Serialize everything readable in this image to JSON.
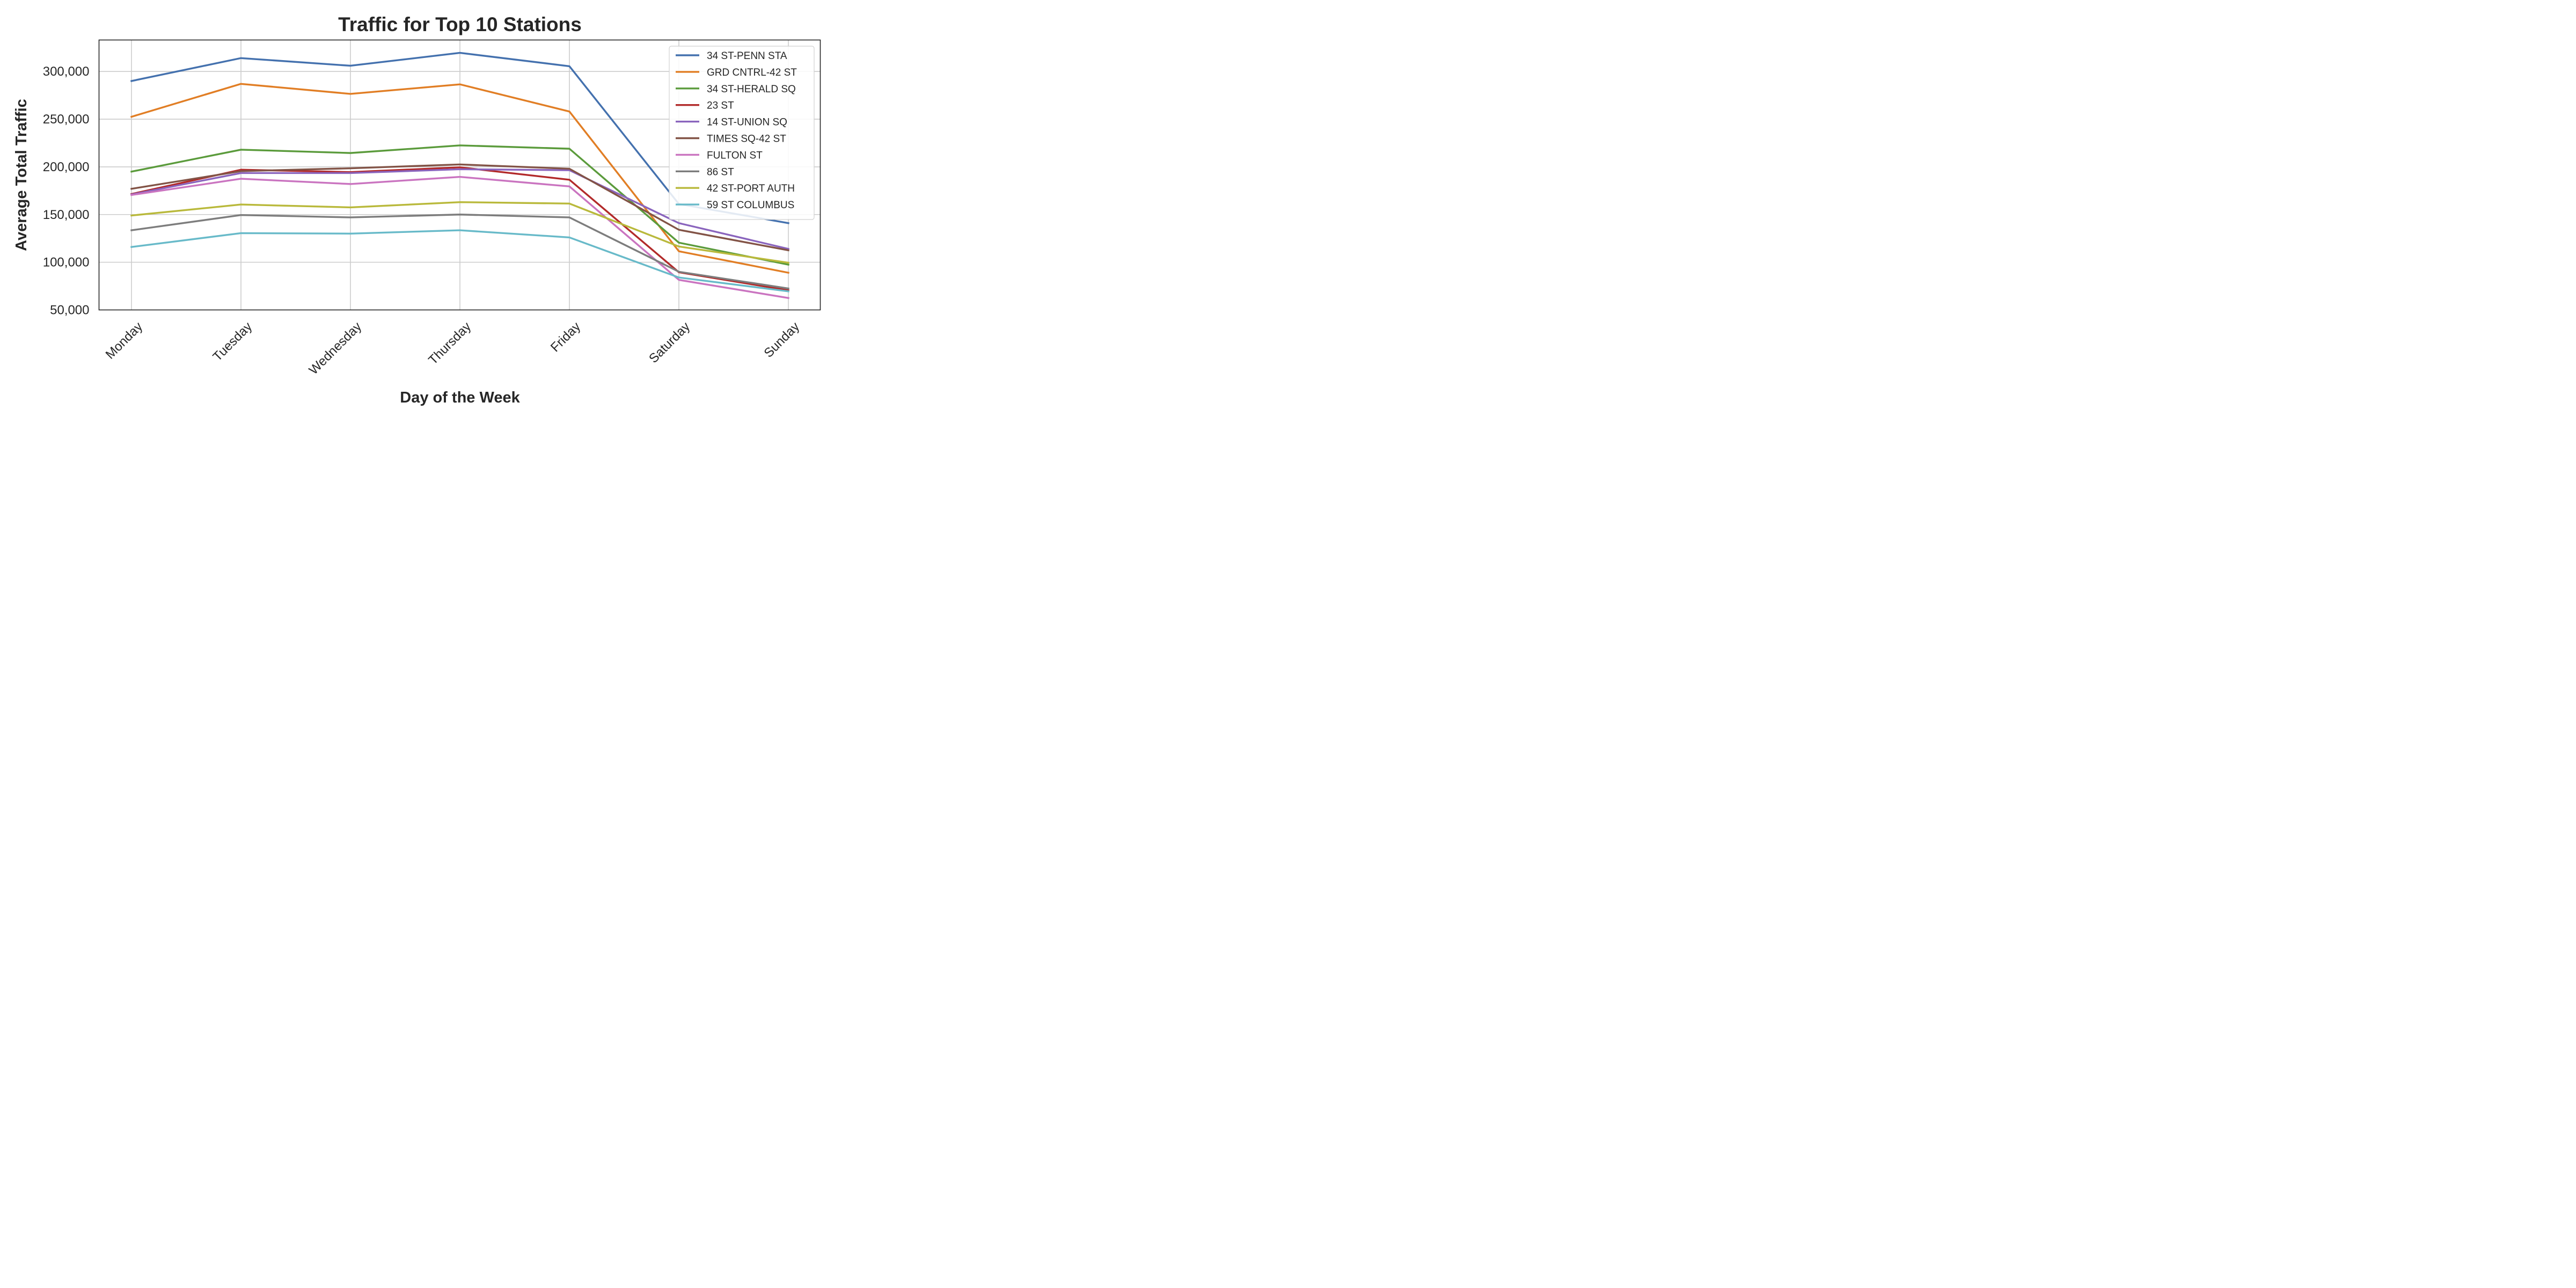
{
  "chart_data": {
    "type": "line",
    "title": "Traffic for Top 10 Stations",
    "xlabel": "Day of the Week",
    "ylabel": "Average Total Traffic",
    "categories": [
      "Monday",
      "Tuesday",
      "Wednesday",
      "Thursday",
      "Friday",
      "Saturday",
      "Sunday"
    ],
    "ylim": [
      50000,
      333000
    ],
    "yticks": [
      50000,
      100000,
      150000,
      200000,
      250000,
      300000
    ],
    "ytick_labels": [
      "50,000",
      "100,000",
      "150,000",
      "200,000",
      "250,000",
      "300,000"
    ],
    "grid": true,
    "legend_position": "top-right",
    "series": [
      {
        "name": "34 ST-PENN STA",
        "color": "#4471ae",
        "values": [
          290000,
          314000,
          306000,
          319500,
          305500,
          161000,
          141000
        ]
      },
      {
        "name": "GRD CNTRL-42 ST",
        "color": "#e17e25",
        "values": [
          252500,
          287000,
          276500,
          286500,
          258000,
          111500,
          89000
        ]
      },
      {
        "name": "34 ST-HERALD SQ",
        "color": "#5b9b3c",
        "values": [
          195000,
          218000,
          214500,
          222500,
          219000,
          120500,
          97500
        ]
      },
      {
        "name": "23 ST",
        "color": "#b22a2a",
        "values": [
          171500,
          197000,
          194500,
          199500,
          186500,
          89500,
          70500
        ]
      },
      {
        "name": "14 ST-UNION SQ",
        "color": "#8a64bd",
        "values": [
          171000,
          193500,
          193500,
          197500,
          196500,
          141000,
          114000
        ]
      },
      {
        "name": "TIMES SQ-42 ST",
        "color": "#825346",
        "values": [
          177000,
          195500,
          198500,
          202500,
          198000,
          134000,
          112500
        ]
      },
      {
        "name": "FULTON ST",
        "color": "#ca74c0",
        "values": [
          170500,
          187500,
          182000,
          189500,
          179500,
          81500,
          62500
        ]
      },
      {
        "name": "86 ST",
        "color": "#7d7d7d",
        "values": [
          133500,
          149500,
          147000,
          150000,
          147000,
          90000,
          72500
        ]
      },
      {
        "name": "42 ST-PORT AUTH",
        "color": "#b9b93b",
        "values": [
          149000,
          160500,
          157500,
          163000,
          161500,
          116500,
          99500
        ]
      },
      {
        "name": "59 ST COLUMBUS",
        "color": "#68bac9",
        "values": [
          116000,
          130500,
          130000,
          133500,
          126000,
          84000,
          69500
        ]
      }
    ]
  }
}
